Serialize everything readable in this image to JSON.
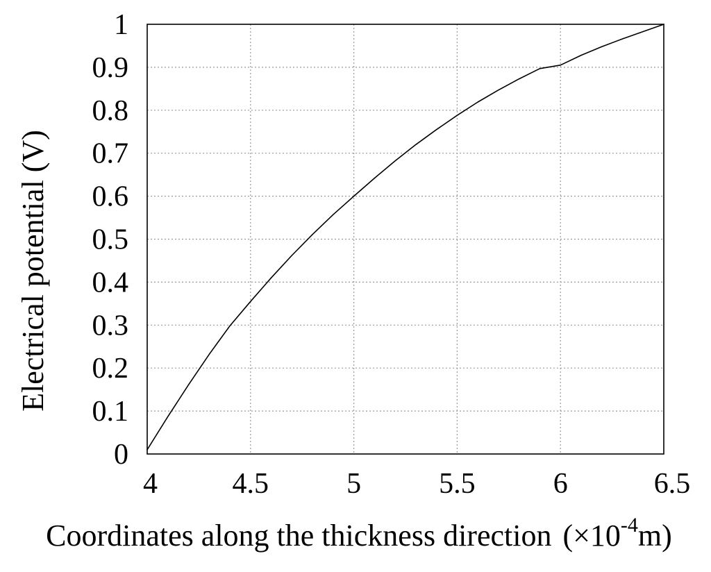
{
  "chart_data": {
    "type": "line",
    "title": "",
    "xlabel": "Coordinates along the thickness direction",
    "xlabel_unit_prefix": "(×10",
    "xlabel_unit_exponent": "-4",
    "xlabel_unit_suffix": "m)",
    "ylabel": "Electrical potential (V)",
    "xlim": [
      4,
      6.5
    ],
    "ylim": [
      0,
      1
    ],
    "xticks": [
      4,
      4.5,
      5,
      5.5,
      6,
      6.5
    ],
    "xtick_labels": [
      "4",
      "4.5",
      "5",
      "5.5",
      "6",
      "6.5"
    ],
    "yticks": [
      0,
      0.1,
      0.2,
      0.3,
      0.4,
      0.5,
      0.6,
      0.7,
      0.8,
      0.9,
      1
    ],
    "ytick_labels": [
      "0",
      "0.1",
      "0.2",
      "0.3",
      "0.4",
      "0.5",
      "0.6",
      "0.7",
      "0.8",
      "0.9",
      "1"
    ],
    "grid": true,
    "legend": "none",
    "series": [
      {
        "x": [
          4.0,
          4.1,
          4.2,
          4.3,
          4.4,
          4.5,
          4.6,
          4.7,
          4.8,
          4.9,
          5.0,
          5.1,
          5.2,
          5.3,
          5.4,
          5.5,
          5.6,
          5.7,
          5.8,
          5.9,
          6.0,
          6.1,
          6.2,
          6.3,
          6.4,
          6.5
        ],
        "y": [
          0.01,
          0.087,
          0.161,
          0.232,
          0.298,
          0.355,
          0.41,
          0.462,
          0.511,
          0.557,
          0.6,
          0.642,
          0.682,
          0.72,
          0.755,
          0.788,
          0.819,
          0.847,
          0.873,
          0.897,
          0.905,
          0.928,
          0.948,
          0.966,
          0.983,
          1.0
        ]
      }
    ],
    "colors": {
      "line": "#000000",
      "grid": "#9a9a9a",
      "frame": "#000000"
    }
  }
}
